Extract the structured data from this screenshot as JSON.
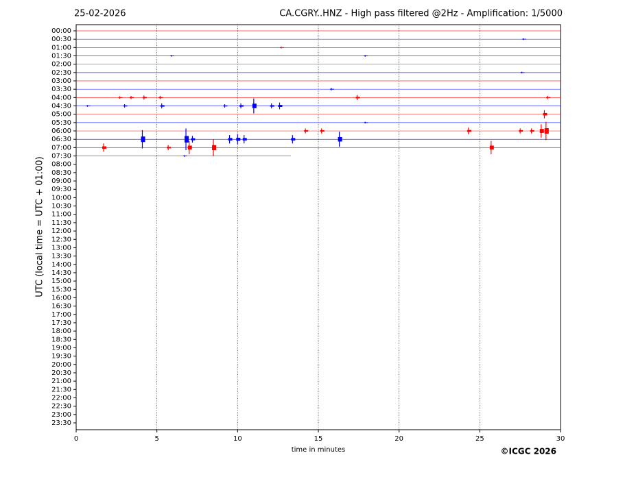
{
  "chart_data": {
    "type": "helicorder",
    "date": "25-02-2026",
    "title": "CA.CGRY..HNZ - High pass filtered @2Hz - Amplification: 1/5000",
    "ylabel": "UTC (local time = UTC + 01:00)",
    "xlabel": "time in minutes",
    "copyright": "©ICGC 2026",
    "xlim": [
      0,
      30
    ],
    "xticks": [
      0,
      5,
      10,
      15,
      20,
      25,
      30
    ],
    "grid": true,
    "rows": [
      "00:00",
      "00:30",
      "01:00",
      "01:30",
      "02:00",
      "02:30",
      "03:00",
      "03:30",
      "04:00",
      "04:30",
      "05:00",
      "05:30",
      "06:00",
      "06:30",
      "07:00",
      "07:30",
      "08:00",
      "08:30",
      "09:00",
      "09:30",
      "10:00",
      "10:30",
      "11:00",
      "11:30",
      "12:00",
      "12:30",
      "13:00",
      "13:30",
      "14:00",
      "14:30",
      "15:00",
      "15:30",
      "16:00",
      "16:30",
      "17:00",
      "17:30",
      "18:00",
      "18:30",
      "19:00",
      "19:30",
      "20:00",
      "20:30",
      "21:00",
      "21:30",
      "22:00",
      "22:30",
      "23:00",
      "23:30"
    ],
    "traces": [
      {
        "color": "#ff0000",
        "end": 30,
        "bursts": []
      },
      {
        "color": "#0000ff",
        "end": 30,
        "bursts": [
          [
            27.7,
            0.1
          ]
        ]
      },
      {
        "color": "#ff0000",
        "end": 30,
        "bursts": [
          [
            12.7,
            0.1
          ]
        ]
      },
      {
        "color": "#0000ff",
        "end": 30,
        "bursts": [
          [
            5.9,
            0.1
          ],
          [
            17.9,
            0.1
          ]
        ]
      },
      {
        "color": "#ff0000",
        "end": 30,
        "bursts": []
      },
      {
        "color": "#0000ff",
        "end": 30,
        "bursts": [
          [
            27.6,
            0.1
          ]
        ]
      },
      {
        "color": "#ff0000",
        "end": 30,
        "bursts": []
      },
      {
        "color": "#0000ff",
        "end": 30,
        "bursts": [
          [
            15.8,
            0.15
          ]
        ]
      },
      {
        "color": "#ff0000",
        "end": 30,
        "bursts": [
          [
            2.7,
            0.15
          ],
          [
            3.4,
            0.2
          ],
          [
            4.2,
            0.25
          ],
          [
            5.2,
            0.2
          ],
          [
            17.4,
            0.3
          ],
          [
            29.2,
            0.2
          ]
        ]
      },
      {
        "color": "#0000ff",
        "end": 30,
        "bursts": [
          [
            0.7,
            0.1
          ],
          [
            3.0,
            0.2
          ],
          [
            5.3,
            0.3
          ],
          [
            9.2,
            0.2
          ],
          [
            10.2,
            0.3
          ],
          [
            11.0,
            0.9
          ],
          [
            12.1,
            0.3
          ],
          [
            12.6,
            0.4
          ]
        ]
      },
      {
        "color": "#ff0000",
        "end": 30,
        "bursts": [
          [
            29.0,
            0.5
          ]
        ]
      },
      {
        "color": "#0000ff",
        "end": 30,
        "bursts": [
          [
            17.9,
            0.1
          ]
        ]
      },
      {
        "color": "#ff0000",
        "end": 30,
        "bursts": [
          [
            14.2,
            0.3
          ],
          [
            15.2,
            0.3
          ],
          [
            24.3,
            0.4
          ],
          [
            27.5,
            0.3
          ],
          [
            28.2,
            0.3
          ],
          [
            28.8,
            0.8
          ],
          [
            29.1,
            1.1
          ]
        ]
      },
      {
        "color": "#0000ff",
        "end": 30,
        "bursts": [
          [
            4.1,
            1.1
          ],
          [
            6.8,
            1.3
          ],
          [
            7.2,
            0.4
          ],
          [
            9.5,
            0.5
          ],
          [
            10.0,
            0.6
          ],
          [
            10.4,
            0.5
          ],
          [
            13.4,
            0.5
          ],
          [
            16.3,
            0.9
          ]
        ]
      },
      {
        "color": "#ff0000",
        "end": 30,
        "bursts": [
          [
            1.7,
            0.5
          ],
          [
            5.7,
            0.3
          ],
          [
            7.0,
            0.8
          ],
          [
            8.5,
            1.0
          ],
          [
            25.7,
            0.8
          ]
        ]
      },
      {
        "color": "#0000ff",
        "end": 13.3,
        "bursts": [
          [
            6.7,
            0.1
          ]
        ]
      }
    ]
  }
}
